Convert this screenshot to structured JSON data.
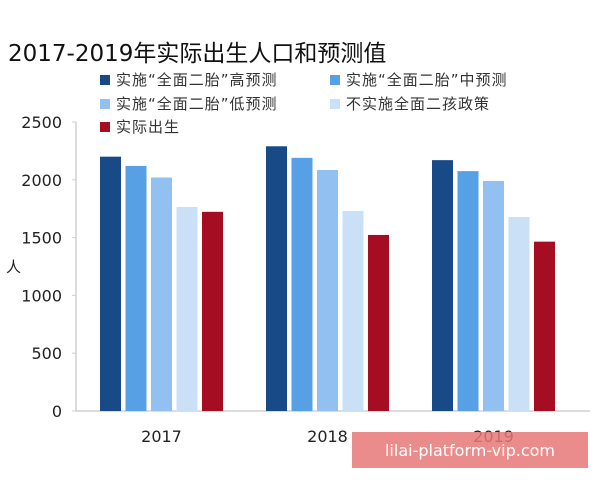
{
  "chart_data": {
    "type": "bar",
    "title": "2017-2019年实际出生人口和预测值",
    "xlabel": "",
    "ylabel": "人",
    "ylim": [
      0,
      2500
    ],
    "yticks": [
      0,
      500,
      1000,
      1500,
      2000,
      2500
    ],
    "grid": false,
    "legend_placement": "top",
    "categories": [
      "2017",
      "2018",
      "2019"
    ],
    "series": [
      {
        "name": "实施“全面二胎”高预测",
        "color": "#174a86",
        "values": [
          2200,
          2290,
          2170
        ]
      },
      {
        "name": "实施“全面二胎”中预测",
        "color": "#57a0e6",
        "values": [
          2120,
          2190,
          2075
        ]
      },
      {
        "name": "实施“全面二胎”低预测",
        "color": "#92c0f0",
        "values": [
          2020,
          2085,
          1990
        ]
      },
      {
        "name": "不实施全面二孩政策",
        "color": "#c9e0f7",
        "values": [
          1765,
          1730,
          1678
        ]
      },
      {
        "name": "实际出生",
        "color": "#a50d22",
        "values": [
          1723,
          1523,
          1465
        ]
      }
    ]
  },
  "watermark": "lilai-platform-vip.com"
}
